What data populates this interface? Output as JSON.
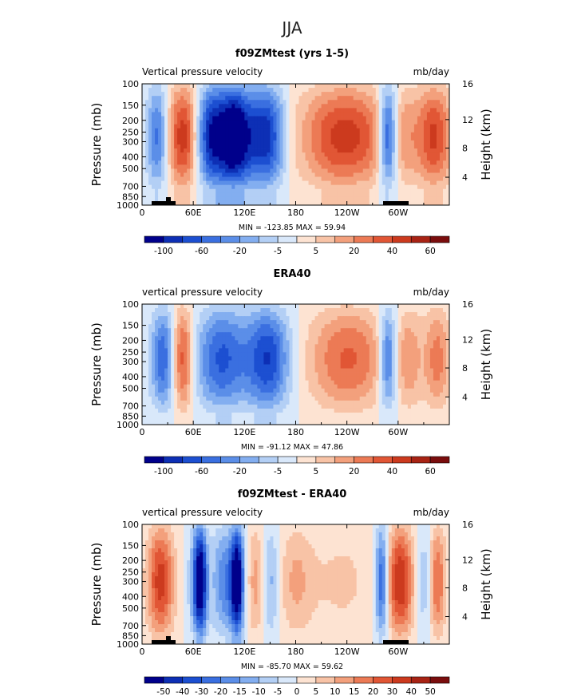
{
  "figure": {
    "supertitle": "JJA"
  },
  "colors": {
    "colorbar_palette": [
      "#00008b",
      "#0d2fb5",
      "#1c4fd1",
      "#3a6fe0",
      "#5b8ee8",
      "#83aef0",
      "#b3cff5",
      "#d9e8fa",
      "#fde3d2",
      "#f8c3a6",
      "#f3a07c",
      "#ec7a55",
      "#e15635",
      "#cc3a1e",
      "#a82314",
      "#7a0d0d"
    ]
  },
  "chart_data": [
    {
      "type": "heatmap",
      "title": "f09ZMtest (yrs 1-5)",
      "left_label": "Vertical pressure velocity",
      "right_label": "mb/day",
      "ylabel": "Pressure (mb)",
      "y2label": "Height (km)",
      "x_ticks": [
        "0",
        "60E",
        "120E",
        "180",
        "120W",
        "60W"
      ],
      "y_ticks": [
        "100",
        "150",
        "200",
        "250",
        "300",
        "400",
        "500",
        "700",
        "850",
        "1000"
      ],
      "y2_ticks": [
        "16",
        "12",
        "8",
        "4"
      ],
      "minmax_text": "MIN = -123.85   MAX =  59.94",
      "min": -123.85,
      "max": 59.94,
      "levels": [
        -100,
        -60,
        -20,
        -5,
        5,
        20,
        40,
        60
      ],
      "colorbar_labels": [
        "-100",
        "-60",
        "-20",
        "-5",
        "5",
        "20",
        "40",
        "60"
      ]
    },
    {
      "type": "heatmap",
      "title": "ERA40",
      "left_label": "vertical pressure velocity",
      "right_label": "mb/day",
      "ylabel": "Pressure (mb)",
      "y2label": "Height (km)",
      "x_ticks": [
        "0",
        "60E",
        "120E",
        "180",
        "120W",
        "60W"
      ],
      "y_ticks": [
        "100",
        "150",
        "200",
        "250",
        "300",
        "400",
        "500",
        "700",
        "850",
        "1000"
      ],
      "y2_ticks": [
        "16",
        "12",
        "8",
        "4"
      ],
      "minmax_text": "MIN = -91.12   MAX =  47.86",
      "min": -91.12,
      "max": 47.86,
      "levels": [
        -100,
        -60,
        -20,
        -5,
        5,
        20,
        40,
        60
      ],
      "colorbar_labels": [
        "-100",
        "-60",
        "-20",
        "-5",
        "5",
        "20",
        "40",
        "60"
      ]
    },
    {
      "type": "heatmap",
      "title": "f09ZMtest - ERA40",
      "left_label": "vertical pressure velocity",
      "right_label": "mb/day",
      "ylabel": "Pressure (mb)",
      "y2label": "Height (km)",
      "x_ticks": [
        "0",
        "60E",
        "120E",
        "180",
        "120W",
        "60W"
      ],
      "y_ticks": [
        "100",
        "150",
        "200",
        "250",
        "300",
        "400",
        "500",
        "700",
        "850",
        "1000"
      ],
      "y2_ticks": [
        "16",
        "12",
        "8",
        "4"
      ],
      "minmax_text": "MIN = -85.70   MAX =  59.62",
      "min": -85.7,
      "max": 59.62,
      "levels": [
        -50,
        -40,
        -30,
        -20,
        -15,
        -10,
        -5,
        0,
        5,
        10,
        15,
        20,
        30,
        40,
        50
      ],
      "colorbar_labels": [
        "-50",
        "-40",
        "-30",
        "-20",
        "-15",
        "-10",
        "-5",
        "0",
        "5",
        "10",
        "15",
        "20",
        "30",
        "40",
        "50"
      ]
    }
  ]
}
